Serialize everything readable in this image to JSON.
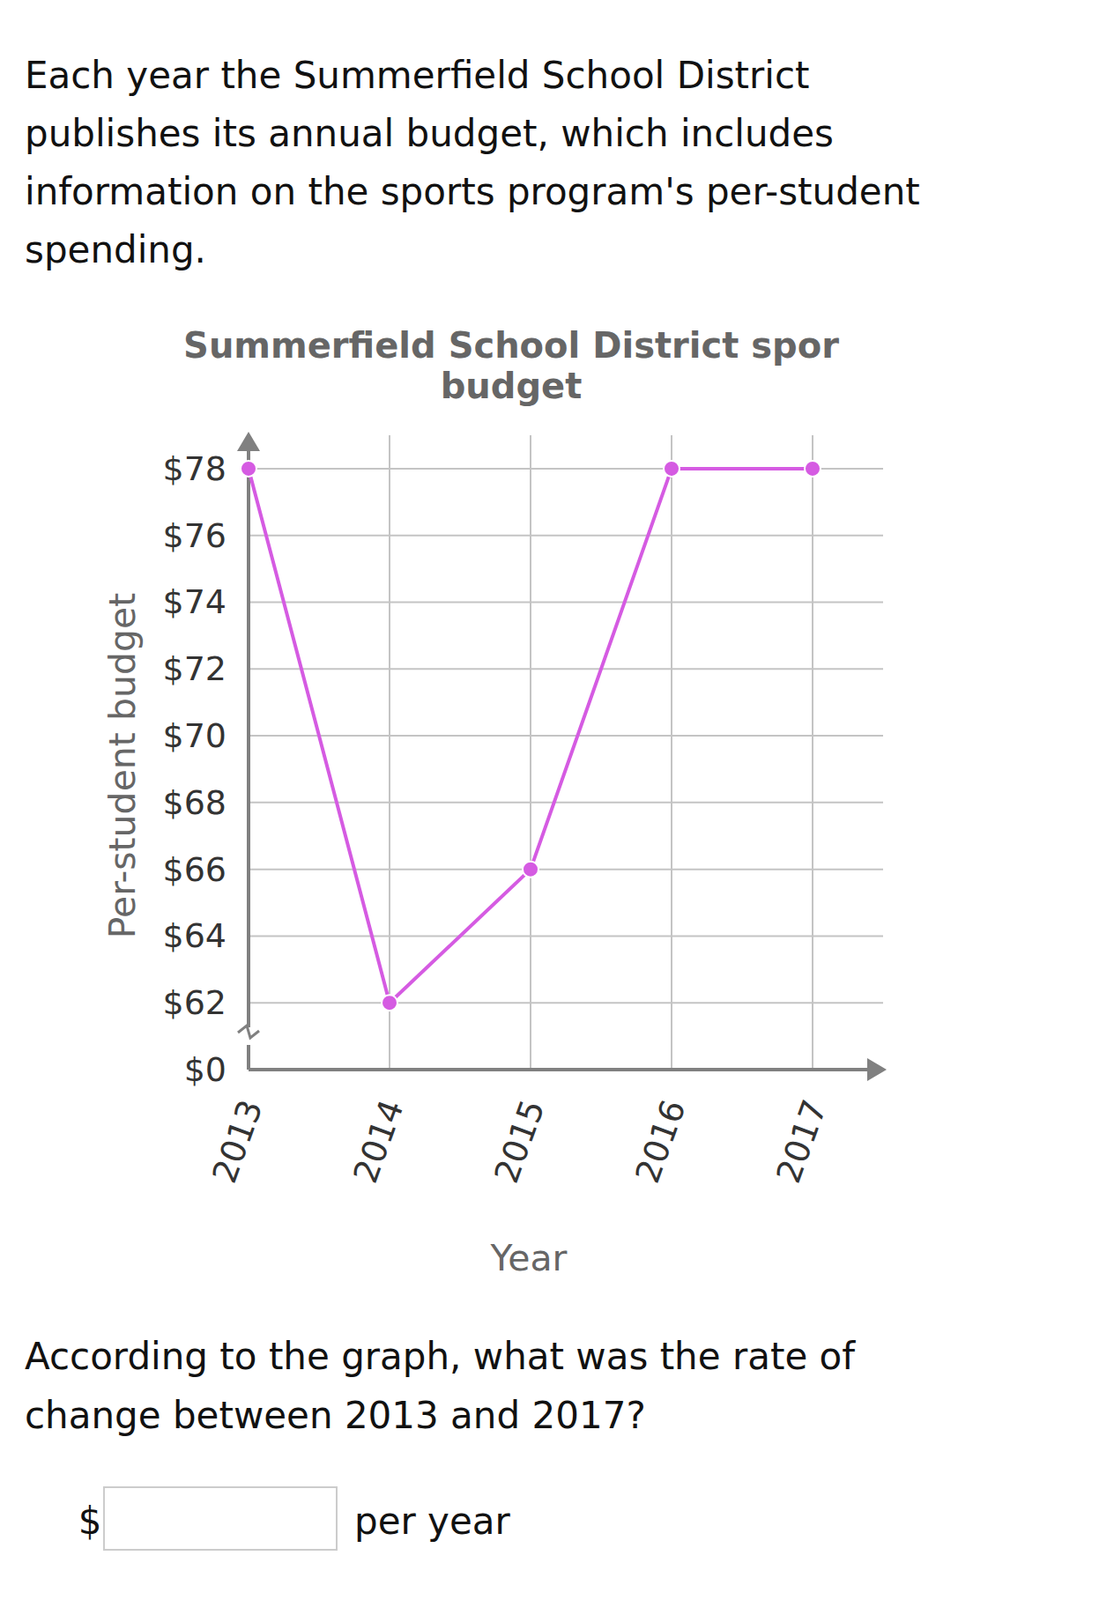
{
  "intro_lines": [
    "Each year the Summerfield School District",
    "publishes its annual budget, which includes",
    "information on the sports program's per-student",
    "spending."
  ],
  "chart_data": {
    "type": "line",
    "title": "Summerfield School District spor\nbudget",
    "x_label": "Year",
    "y_label": "Per-student budget",
    "categories": [
      "2013",
      "2014",
      "2015",
      "2016",
      "2017"
    ],
    "values": [
      78,
      62,
      66,
      78,
      78
    ],
    "color": "#d55be2",
    "marker": "circle",
    "ylim": [
      60,
      79
    ],
    "yticks": [
      {
        "value": 62,
        "label": "$62"
      },
      {
        "value": 64,
        "label": "$64"
      },
      {
        "value": 66,
        "label": "$66"
      },
      {
        "value": 68,
        "label": "$68"
      },
      {
        "value": 70,
        "label": "$70"
      },
      {
        "value": 72,
        "label": "$72"
      },
      {
        "value": 74,
        "label": "$74"
      },
      {
        "value": 76,
        "label": "$76"
      },
      {
        "value": 78,
        "label": "$78"
      }
    ],
    "axis_break": {
      "value": 0,
      "label": "$0"
    },
    "grid": true
  },
  "question_lines": [
    "According to the graph, what was the rate of",
    "change between 2013 and 2017?"
  ],
  "answer_prefix": "$",
  "answer_suffix": "per year"
}
